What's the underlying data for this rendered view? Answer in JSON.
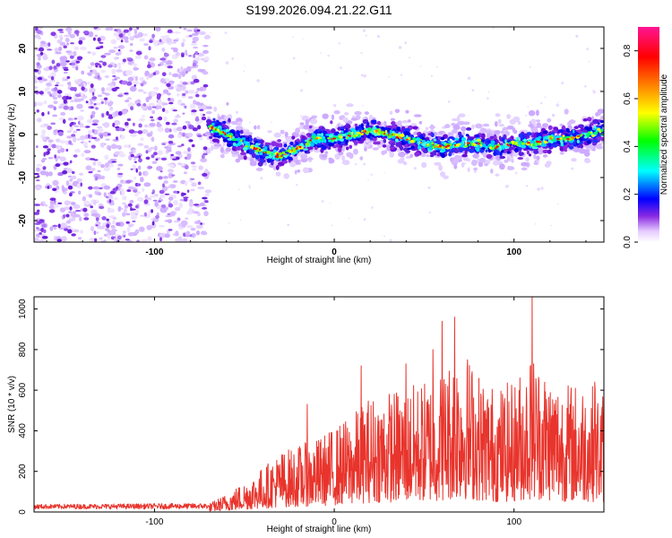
{
  "title": "S199.2026.094.21.22.G11",
  "chart_data": [
    {
      "type": "heatmap",
      "name": "spectrogram",
      "title": "S199.2026.094.21.22.G11",
      "xlabel": "Height of straight line (km)",
      "ylabel": "Frequency (Hz)",
      "xlim": [
        -167,
        150
      ],
      "ylim": [
        -25,
        25
      ],
      "x_ticks": [
        -100,
        0,
        100
      ],
      "y_ticks": [
        -20,
        -10,
        0,
        10,
        20
      ],
      "x_tick_labels": [
        "-100",
        "0",
        "100"
      ],
      "y_tick_labels": [
        "-20",
        "-10",
        "0",
        "10",
        "20"
      ],
      "noise_region_x": [
        -167,
        -70
      ],
      "ridge": {
        "x": [
          -70,
          -60,
          -50,
          -40,
          -30,
          -20,
          -10,
          0,
          10,
          20,
          30,
          40,
          50,
          60,
          70,
          80,
          90,
          100,
          110,
          120,
          130,
          140,
          150
        ],
        "y": [
          2,
          0,
          -2,
          -4,
          -5,
          -3,
          -1,
          -1,
          0,
          1,
          0,
          -1,
          -2,
          -3,
          -2,
          -2,
          -3,
          -2,
          -2,
          -1,
          -1,
          0,
          1
        ]
      },
      "colorbar": {
        "label": "Normalized spectral amplitude",
        "range": [
          0,
          0.9
        ],
        "ticks": [
          0.0,
          0.2,
          0.4,
          0.6,
          0.8
        ],
        "tick_labels": [
          "0.0",
          "0.2",
          "0.4",
          "0.6",
          "0.8"
        ]
      }
    },
    {
      "type": "line",
      "name": "snr",
      "xlabel": "Height of straight line (km)",
      "ylabel": "SNR (10 * v/v)",
      "xlim": [
        -167,
        150
      ],
      "ylim": [
        0,
        1060
      ],
      "x_ticks": [
        -100,
        0,
        100
      ],
      "y_ticks": [
        0,
        200,
        400,
        600,
        800,
        1000
      ],
      "x_tick_labels": [
        "-100",
        "0",
        "100"
      ],
      "y_tick_labels": [
        "0",
        "200",
        "400",
        "600",
        "800",
        "1000"
      ],
      "color": "#e8342c",
      "envelope": {
        "x": [
          -167,
          -70,
          -60,
          -50,
          -40,
          -30,
          -20,
          -10,
          0,
          10,
          20,
          30,
          40,
          50,
          60,
          70,
          80,
          90,
          100,
          110,
          120,
          130,
          140,
          150
        ],
        "y": [
          35,
          40,
          90,
          150,
          220,
          300,
          330,
          360,
          420,
          480,
          580,
          600,
          620,
          650,
          700,
          850,
          700,
          620,
          650,
          800,
          700,
          640,
          650,
          600
        ]
      },
      "peaks": [
        {
          "x": -15,
          "y": 530
        },
        {
          "x": 15,
          "y": 720
        },
        {
          "x": 40,
          "y": 730
        },
        {
          "x": 55,
          "y": 800
        },
        {
          "x": 60,
          "y": 940
        },
        {
          "x": 67,
          "y": 960
        },
        {
          "x": 110,
          "y": 1060
        },
        {
          "x": 145,
          "y": 640
        }
      ]
    }
  ]
}
